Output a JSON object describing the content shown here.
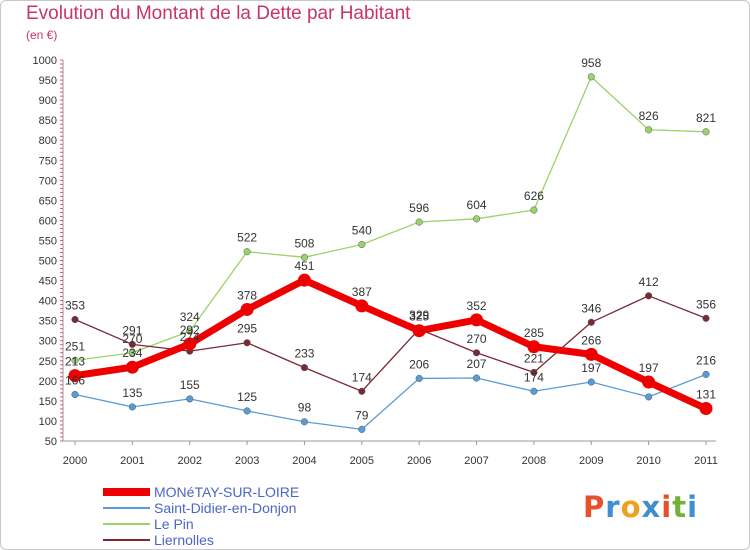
{
  "title": "Evolution du Montant de la Dette par Habitant",
  "unit_label": "(en €)",
  "logo": {
    "text": "Proxiti",
    "colors": [
      "#e7502a",
      "#3f8fd0",
      "#f0a020",
      "#3f8fd0",
      "#e7502a",
      "#6fb33a",
      "#3f8fd0"
    ]
  },
  "chart_data": {
    "type": "line",
    "x": [
      "2000",
      "2001",
      "2002",
      "2003",
      "2004",
      "2005",
      "2006",
      "2007",
      "2008",
      "2009",
      "2010",
      "2011"
    ],
    "ylim": [
      50,
      1000
    ],
    "yticks": [
      50,
      100,
      150,
      200,
      250,
      300,
      350,
      400,
      450,
      500,
      550,
      600,
      650,
      700,
      750,
      800,
      850,
      900,
      950,
      1000
    ],
    "grid": false,
    "legend_position": "bottom-left",
    "series": [
      {
        "name": "MONéTAY-SUR-LOIRE",
        "color": "#ee0000",
        "values": [
          213,
          234,
          292,
          378,
          451,
          387,
          325,
          352,
          285,
          266,
          197,
          131
        ],
        "labels": [
          "213",
          "234",
          "292",
          "378",
          "451",
          "387",
          "325",
          "352",
          "285",
          "266",
          "197",
          "131"
        ]
      },
      {
        "name": "Saint-Didier-en-Donjon",
        "color": "#5b9bd5",
        "values": [
          166,
          135,
          155,
          125,
          98,
          79,
          206,
          207,
          174,
          197,
          160,
          216
        ],
        "labels": [
          "166",
          "135",
          "155",
          "125",
          "98",
          "79",
          "206",
          "207",
          "174",
          "197",
          "",
          "216"
        ]
      },
      {
        "name": "Le Pin",
        "color": "#9bd36a",
        "values": [
          251,
          270,
          324,
          522,
          508,
          540,
          596,
          604,
          626,
          958,
          826,
          821
        ],
        "labels": [
          "251",
          "270",
          "324",
          "522",
          "508",
          "540",
          "596",
          "604",
          "626",
          "958",
          "826",
          "821"
        ]
      },
      {
        "name": "Liernolles",
        "color": "#7a2a35",
        "values": [
          353,
          291,
          274,
          295,
          233,
          174,
          329,
          270,
          221,
          346,
          412,
          356
        ],
        "labels": [
          "353",
          "291",
          "274",
          "295",
          "233",
          "174",
          "329",
          "270",
          "221",
          "346",
          "412",
          "356"
        ]
      }
    ]
  }
}
